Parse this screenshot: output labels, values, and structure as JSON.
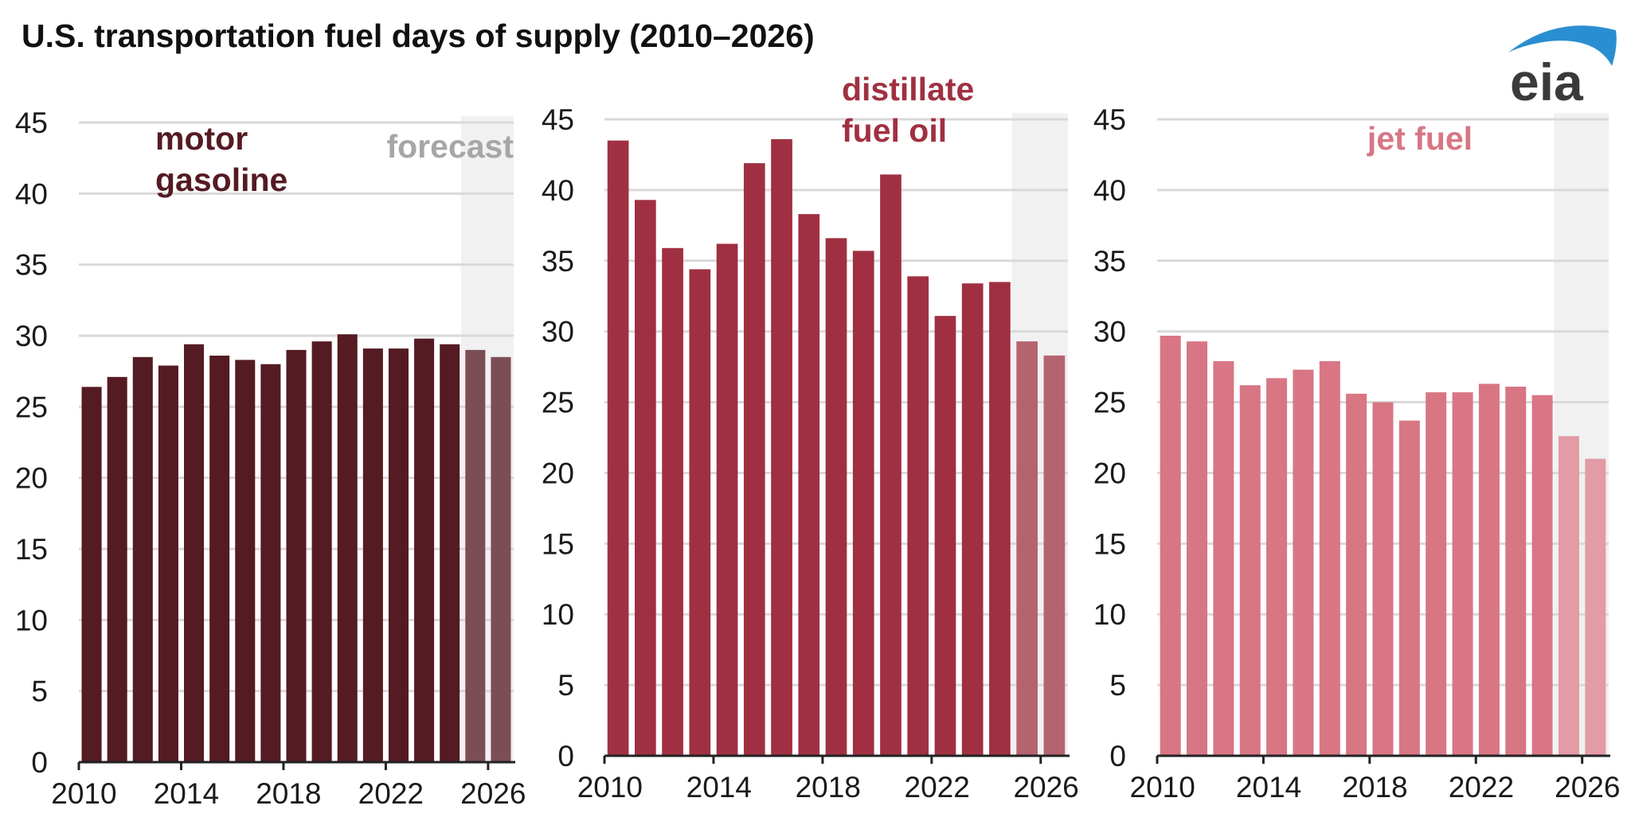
{
  "title": "U.S. transportation fuel days of supply (2010–2026)",
  "logo_text": "eia",
  "forecast_label": "forecast",
  "colors": {
    "motor_gasoline": "#541b22",
    "motor_gasoline_forecast": "#7b4e56",
    "distillate_fuel_oil": "#a03041",
    "distillate_fuel_oil_forecast": "#b5646f",
    "jet_fuel": "#d87684",
    "jet_fuel_forecast": "#e39ba5",
    "forecast_shade": "#f1f1f1",
    "gridline": "#d9d9d9",
    "forecast_label": "#a6a6a6",
    "logo_blue": "#2a8fd0",
    "logo_text": "#3a3a3a"
  },
  "chart_data": [
    {
      "type": "bar",
      "name": "motor gasoline",
      "label_lines": [
        "motor",
        "gasoline"
      ],
      "x": [
        2010,
        2011,
        2012,
        2013,
        2014,
        2015,
        2016,
        2017,
        2018,
        2019,
        2020,
        2021,
        2022,
        2023,
        2024,
        2025,
        2026
      ],
      "values": [
        26.4,
        27.1,
        28.5,
        27.9,
        29.4,
        28.6,
        28.3,
        28.0,
        29.0,
        29.6,
        30.1,
        29.1,
        29.1,
        29.8,
        29.4,
        29.0,
        28.5
      ],
      "forecast_start": 2025,
      "ylim": [
        0,
        45
      ],
      "yticks": [
        0,
        5,
        10,
        15,
        20,
        25,
        30,
        35,
        40,
        45
      ],
      "xticks": [
        2010,
        2014,
        2018,
        2022,
        2026
      ],
      "xlabel": "",
      "ylabel": "",
      "grid": true
    },
    {
      "type": "bar",
      "name": "distillate fuel oil",
      "label_lines": [
        "distillate",
        "fuel oil"
      ],
      "x": [
        2010,
        2011,
        2012,
        2013,
        2014,
        2015,
        2016,
        2017,
        2018,
        2019,
        2020,
        2021,
        2022,
        2023,
        2024,
        2025,
        2026
      ],
      "values": [
        43.5,
        39.3,
        35.9,
        34.4,
        36.2,
        41.9,
        43.6,
        38.3,
        36.6,
        35.7,
        41.1,
        33.9,
        31.1,
        33.4,
        33.5,
        29.3,
        28.3
      ],
      "forecast_start": 2025,
      "ylim": [
        0,
        45
      ],
      "yticks": [
        0,
        5,
        10,
        15,
        20,
        25,
        30,
        35,
        40,
        45
      ],
      "xticks": [
        2010,
        2014,
        2018,
        2022,
        2026
      ],
      "xlabel": "",
      "ylabel": "",
      "grid": true
    },
    {
      "type": "bar",
      "name": "jet fuel",
      "label_lines": [
        "jet fuel"
      ],
      "x": [
        2010,
        2011,
        2012,
        2013,
        2014,
        2015,
        2016,
        2017,
        2018,
        2019,
        2020,
        2021,
        2022,
        2023,
        2024,
        2025,
        2026
      ],
      "values": [
        29.7,
        29.3,
        27.9,
        26.2,
        26.7,
        27.3,
        27.9,
        25.6,
        25.0,
        23.7,
        25.7,
        25.7,
        26.3,
        26.1,
        25.5,
        22.6,
        21.0
      ],
      "forecast_start": 2025,
      "ylim": [
        0,
        45
      ],
      "yticks": [
        0,
        5,
        10,
        15,
        20,
        25,
        30,
        35,
        40,
        45
      ],
      "xticks": [
        2010,
        2014,
        2018,
        2022,
        2026
      ],
      "xlabel": "",
      "ylabel": "",
      "grid": true
    }
  ]
}
